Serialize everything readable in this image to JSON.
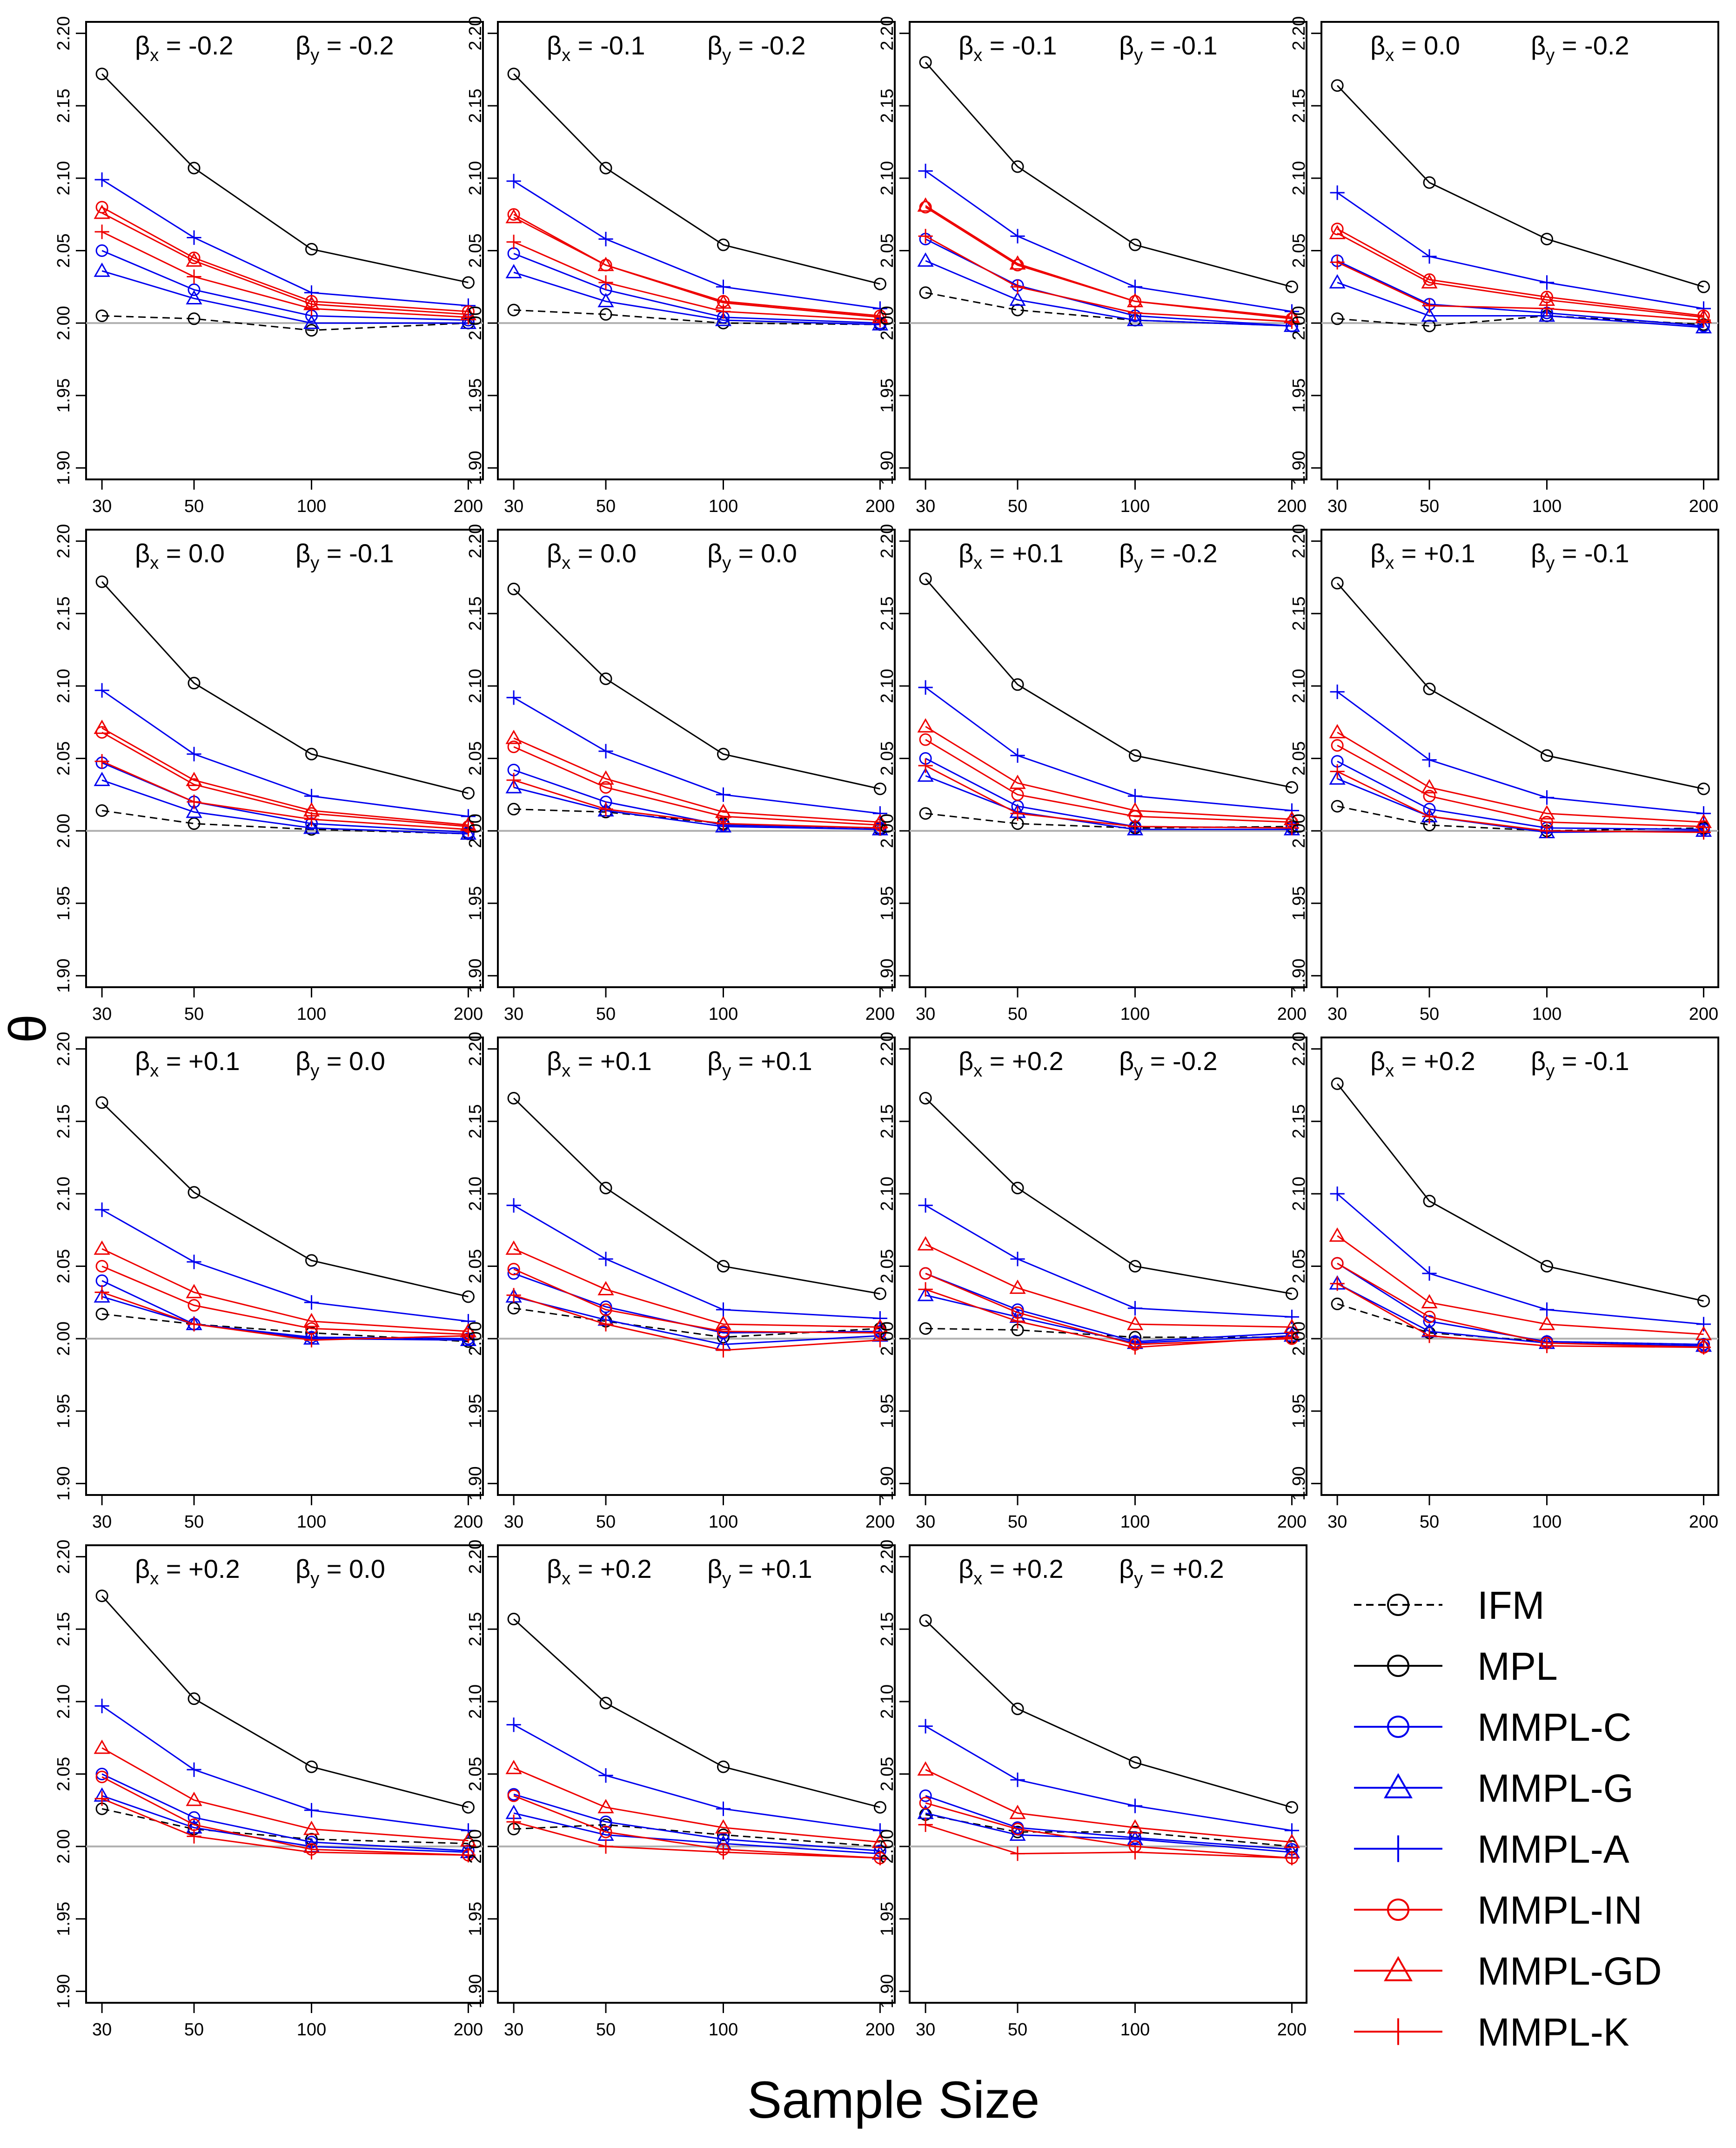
{
  "figure": {
    "xlabel": "Sample Size",
    "ylabel": "θ"
  },
  "chart_data": {
    "type": "line",
    "x": [
      30,
      50,
      100,
      200
    ],
    "xtick_labels": [
      "30",
      "50",
      "100",
      "200"
    ],
    "ylim": [
      1.9,
      2.2
    ],
    "yticks": [
      1.9,
      1.95,
      2.0,
      2.05,
      2.1,
      2.15,
      2.2
    ],
    "ytick_labels": [
      "1.90",
      "1.95",
      "2.00",
      "2.05",
      "2.10",
      "2.15",
      "2.20"
    ],
    "reference_line": 2.0,
    "beta_x_symbol": "β",
    "beta_x_sub": "x",
    "beta_y_symbol": "β",
    "beta_y_sub": "y",
    "series_styles": [
      {
        "name": "IFM",
        "color": "#000000",
        "marker": "circle",
        "dashed": true
      },
      {
        "name": "MPL",
        "color": "#000000",
        "marker": "circle",
        "dashed": false
      },
      {
        "name": "MMPL-C",
        "color": "#0000ee",
        "marker": "circle",
        "dashed": false
      },
      {
        "name": "MMPL-G",
        "color": "#0000ee",
        "marker": "triangle",
        "dashed": false
      },
      {
        "name": "MMPL-A",
        "color": "#0000ee",
        "marker": "plus",
        "dashed": false
      },
      {
        "name": "MMPL-IN",
        "color": "#ee0000",
        "marker": "circle",
        "dashed": false
      },
      {
        "name": "MMPL-GD",
        "color": "#ee0000",
        "marker": "triangle",
        "dashed": false
      },
      {
        "name": "MMPL-K",
        "color": "#ee0000",
        "marker": "plus",
        "dashed": false
      }
    ],
    "panels": [
      {
        "bx": "-0.2",
        "by": "-0.2",
        "series": [
          [
            2.005,
            2.003,
            1.995,
            2.0
          ],
          [
            2.172,
            2.107,
            2.051,
            2.028
          ],
          [
            2.05,
            2.023,
            2.005,
            2.002
          ],
          [
            2.036,
            2.017,
            2.0,
            2.0
          ],
          [
            2.099,
            2.059,
            2.021,
            2.012
          ],
          [
            2.08,
            2.045,
            2.015,
            2.008
          ],
          [
            2.076,
            2.043,
            2.013,
            2.006
          ],
          [
            2.063,
            2.032,
            2.01,
            2.004
          ]
        ]
      },
      {
        "bx": "-0.1",
        "by": "-0.2",
        "series": [
          [
            2.009,
            2.006,
            2.0,
            1.999
          ],
          [
            2.172,
            2.107,
            2.054,
            2.027
          ],
          [
            2.048,
            2.023,
            2.004,
            2.0
          ],
          [
            2.035,
            2.015,
            2.002,
            1.999
          ],
          [
            2.098,
            2.058,
            2.025,
            2.01
          ],
          [
            2.075,
            2.04,
            2.015,
            2.005
          ],
          [
            2.073,
            2.04,
            2.014,
            2.004
          ],
          [
            2.056,
            2.028,
            2.008,
            2.002
          ]
        ]
      },
      {
        "bx": "-0.1",
        "by": "-0.1",
        "series": [
          [
            2.021,
            2.009,
            2.002,
            1.998
          ],
          [
            2.18,
            2.108,
            2.054,
            2.025
          ],
          [
            2.058,
            2.026,
            2.005,
            1.998
          ],
          [
            2.043,
            2.016,
            2.002,
            1.998
          ],
          [
            2.105,
            2.06,
            2.025,
            2.008
          ],
          [
            2.08,
            2.04,
            2.015,
            2.003
          ],
          [
            2.081,
            2.041,
            2.015,
            2.004
          ],
          [
            2.06,
            2.025,
            2.007,
            2.001
          ]
        ]
      },
      {
        "bx": "0.0",
        "by": "-0.2",
        "series": [
          [
            2.003,
            1.998,
            2.005,
            1.999
          ],
          [
            2.164,
            2.097,
            2.058,
            2.025
          ],
          [
            2.043,
            2.013,
            2.007,
            1.998
          ],
          [
            2.028,
            2.005,
            2.005,
            1.997
          ],
          [
            2.09,
            2.046,
            2.028,
            2.01
          ],
          [
            2.065,
            2.03,
            2.018,
            2.005
          ],
          [
            2.062,
            2.028,
            2.016,
            2.004
          ],
          [
            2.042,
            2.012,
            2.01,
            2.002
          ]
        ]
      },
      {
        "bx": "0.0",
        "by": "-0.1",
        "series": [
          [
            2.014,
            2.005,
            2.001,
            1.998
          ],
          [
            2.172,
            2.102,
            2.053,
            2.026
          ],
          [
            2.047,
            2.02,
            2.005,
            1.999
          ],
          [
            2.035,
            2.013,
            2.002,
            1.998
          ],
          [
            2.097,
            2.053,
            2.024,
            2.01
          ],
          [
            2.068,
            2.032,
            2.012,
            2.003
          ],
          [
            2.071,
            2.035,
            2.014,
            2.004
          ],
          [
            2.048,
            2.02,
            2.008,
            2.001
          ]
        ]
      },
      {
        "bx": "0.0",
        "by": "0.0",
        "series": [
          [
            2.015,
            2.013,
            2.005,
            2.001
          ],
          [
            2.167,
            2.105,
            2.053,
            2.029
          ],
          [
            2.042,
            2.02,
            2.004,
            2.002
          ],
          [
            2.03,
            2.014,
            2.003,
            2.001
          ],
          [
            2.092,
            2.055,
            2.025,
            2.012
          ],
          [
            2.058,
            2.03,
            2.01,
            2.004
          ],
          [
            2.064,
            2.036,
            2.013,
            2.006
          ],
          [
            2.035,
            2.015,
            2.005,
            2.002
          ]
        ]
      },
      {
        "bx": "+0.1",
        "by": "-0.2",
        "series": [
          [
            2.012,
            2.005,
            2.002,
            2.003
          ],
          [
            2.174,
            2.101,
            2.052,
            2.03
          ],
          [
            2.05,
            2.017,
            2.003,
            2.002
          ],
          [
            2.038,
            2.013,
            2.001,
            2.001
          ],
          [
            2.099,
            2.052,
            2.024,
            2.014
          ],
          [
            2.063,
            2.025,
            2.01,
            2.006
          ],
          [
            2.072,
            2.033,
            2.014,
            2.008
          ],
          [
            2.045,
            2.012,
            2.003,
            2.002
          ]
        ]
      },
      {
        "bx": "+0.1",
        "by": "-0.1",
        "series": [
          [
            2.017,
            2.004,
            2.0,
            2.002
          ],
          [
            2.171,
            2.098,
            2.052,
            2.029
          ],
          [
            2.048,
            2.015,
            2.002,
            2.001
          ],
          [
            2.036,
            2.01,
            1.999,
            2.0
          ],
          [
            2.096,
            2.049,
            2.023,
            2.012
          ],
          [
            2.059,
            2.024,
            2.006,
            2.003
          ],
          [
            2.068,
            2.03,
            2.012,
            2.006
          ],
          [
            2.041,
            2.01,
            2.0,
            1.999
          ]
        ]
      },
      {
        "bx": "+0.1",
        "by": "0.0",
        "series": [
          [
            2.017,
            2.01,
            2.004,
            1.998
          ],
          [
            2.163,
            2.101,
            2.054,
            2.029
          ],
          [
            2.04,
            2.01,
            2.001,
            2.0
          ],
          [
            2.029,
            2.01,
            2.0,
            1.999
          ],
          [
            2.089,
            2.053,
            2.025,
            2.012
          ],
          [
            2.05,
            2.023,
            2.007,
            2.003
          ],
          [
            2.062,
            2.032,
            2.012,
            2.005
          ],
          [
            2.032,
            2.01,
            1.999,
            2.002
          ]
        ]
      },
      {
        "bx": "+0.1",
        "by": "+0.1",
        "series": [
          [
            2.021,
            2.012,
            2.001,
            2.007
          ],
          [
            2.166,
            2.104,
            2.05,
            2.031
          ],
          [
            2.045,
            2.022,
            2.004,
            2.005
          ],
          [
            2.029,
            2.013,
            1.996,
            2.002
          ],
          [
            2.092,
            2.055,
            2.02,
            2.014
          ],
          [
            2.048,
            2.02,
            2.005,
            2.004
          ],
          [
            2.062,
            2.034,
            2.01,
            2.008
          ],
          [
            2.03,
            2.01,
            1.992,
            1.999
          ]
        ]
      },
      {
        "bx": "+0.2",
        "by": "-0.2",
        "series": [
          [
            2.007,
            2.006,
            2.001,
            2.001
          ],
          [
            2.166,
            2.104,
            2.05,
            2.031
          ],
          [
            2.045,
            2.02,
            1.998,
            2.004
          ],
          [
            2.03,
            2.015,
            1.997,
            2.002
          ],
          [
            2.092,
            2.055,
            2.021,
            2.015
          ],
          [
            2.045,
            2.018,
            1.996,
            2.0
          ],
          [
            2.065,
            2.035,
            2.01,
            2.008
          ],
          [
            2.034,
            2.012,
            1.994,
            2.001
          ]
        ]
      },
      {
        "bx": "+0.2",
        "by": "-0.1",
        "series": [
          [
            2.024,
            2.004,
            1.998,
            1.996
          ],
          [
            2.176,
            2.095,
            2.05,
            2.026
          ],
          [
            2.052,
            2.012,
            1.998,
            1.996
          ],
          [
            2.038,
            2.005,
            1.997,
            1.995
          ],
          [
            2.1,
            2.045,
            2.02,
            2.01
          ],
          [
            2.052,
            2.015,
            1.997,
            1.994
          ],
          [
            2.071,
            2.025,
            2.01,
            2.003
          ],
          [
            2.038,
            2.002,
            1.995,
            1.994
          ]
        ]
      },
      {
        "bx": "+0.2",
        "by": "0.0",
        "series": [
          [
            2.026,
            2.012,
            2.005,
            2.002
          ],
          [
            2.173,
            2.102,
            2.055,
            2.027
          ],
          [
            2.05,
            2.02,
            2.003,
            1.997
          ],
          [
            2.035,
            2.013,
            2.0,
            1.996
          ],
          [
            2.097,
            2.053,
            2.025,
            2.011
          ],
          [
            2.048,
            2.015,
            1.998,
            1.994
          ],
          [
            2.068,
            2.032,
            2.012,
            2.004
          ],
          [
            2.033,
            2.007,
            1.996,
            1.994
          ]
        ]
      },
      {
        "bx": "+0.2",
        "by": "+0.1",
        "series": [
          [
            2.012,
            2.015,
            2.008,
            2.0
          ],
          [
            2.157,
            2.099,
            2.055,
            2.027
          ],
          [
            2.036,
            2.017,
            2.005,
            1.997
          ],
          [
            2.023,
            2.008,
            2.002,
            1.995
          ],
          [
            2.084,
            2.049,
            2.026,
            2.011
          ],
          [
            2.035,
            2.01,
            1.998,
            1.992
          ],
          [
            2.054,
            2.027,
            2.013,
            2.003
          ],
          [
            2.017,
            2.0,
            1.996,
            1.992
          ]
        ]
      },
      {
        "bx": "+0.2",
        "by": "+0.2",
        "series": [
          [
            2.022,
            2.01,
            2.01,
            2.0
          ],
          [
            2.156,
            2.095,
            2.058,
            2.027
          ],
          [
            2.035,
            2.013,
            2.006,
            1.998
          ],
          [
            2.023,
            2.008,
            2.005,
            1.996
          ],
          [
            2.083,
            2.046,
            2.028,
            2.011
          ],
          [
            2.03,
            2.012,
            2.0,
            1.992
          ],
          [
            2.053,
            2.023,
            2.013,
            2.003
          ],
          [
            2.015,
            1.995,
            1.996,
            1.992
          ]
        ]
      }
    ]
  }
}
